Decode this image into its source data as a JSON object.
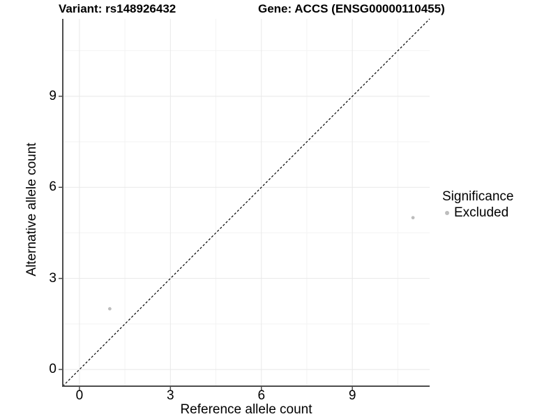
{
  "chart_data": {
    "type": "scatter",
    "title_variant": "Variant: rs148926432",
    "title_gene": "Gene: ACCS (ENSG00000110455)",
    "xlabel": "Reference allele count",
    "ylabel": "Alternative allele count",
    "xlim": [
      -0.55,
      11.55
    ],
    "ylim": [
      -0.55,
      11.55
    ],
    "x_major_ticks": [
      0,
      3,
      6,
      9
    ],
    "x_minor_ticks": [
      1.5,
      4.5,
      7.5,
      10.5
    ],
    "y_major_ticks": [
      0,
      3,
      6,
      9
    ],
    "y_minor_ticks": [
      1.5,
      4.5,
      7.5,
      10.5
    ],
    "grid": "on",
    "identity_line": {
      "style": "dashed",
      "color": "#000000",
      "from": [
        -0.55,
        -0.55
      ],
      "to": [
        11.55,
        11.55
      ]
    },
    "series": [
      {
        "name": "Excluded",
        "color": "#bdbdbd",
        "points": [
          {
            "x": 1,
            "y": 2
          },
          {
            "x": 11,
            "y": 5
          }
        ]
      }
    ],
    "legend": {
      "title": "Significance",
      "position": "right",
      "entries": [
        {
          "label": "Excluded",
          "color": "#bdbdbd"
        }
      ]
    },
    "colors": {
      "grid_major": "#e8e8e8",
      "grid_minor": "#f3f3f3",
      "axis_line": "#4d4d4d",
      "text": "#000000"
    }
  }
}
